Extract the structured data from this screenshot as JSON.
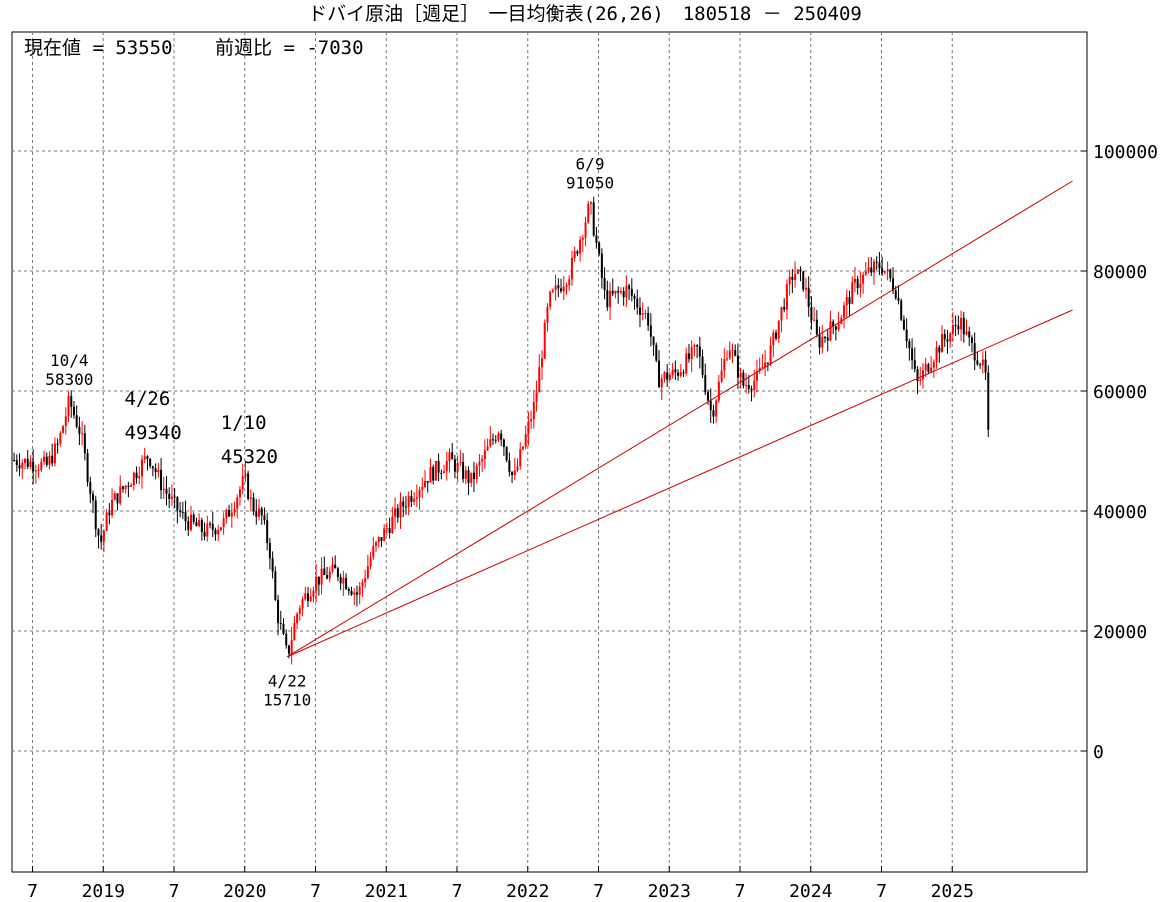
{
  "title": "ドバイ原油［週足］　一目均衡表(26,26)　180518 － 250409",
  "info": {
    "current_label": "現在値 = 53550",
    "change_label": "前週比 = -7030"
  },
  "colors": {
    "up": "#ff0000",
    "down": "#000000",
    "trendline": "#cc0000",
    "grid": "#777777",
    "frame": "#000000"
  },
  "chart_data": {
    "type": "candlestick",
    "title": "ドバイ原油［週足］　一目均衡表(26,26)　180518 － 250409",
    "period": "weekly",
    "ylim": [
      -20000,
      120000
    ],
    "y_ticks": [
      0,
      20000,
      40000,
      60000,
      80000,
      100000
    ],
    "y_tick_labels": [
      "0",
      "20000",
      "40000",
      "60000",
      "80000",
      "100000"
    ],
    "x_range": [
      2018.35,
      2025.85
    ],
    "x_ticks": [
      {
        "t": 2018.5,
        "label": "7"
      },
      {
        "t": 2019.0,
        "label": "2019"
      },
      {
        "t": 2019.5,
        "label": "7"
      },
      {
        "t": 2020.0,
        "label": "2020"
      },
      {
        "t": 2020.5,
        "label": "7"
      },
      {
        "t": 2021.0,
        "label": "2021"
      },
      {
        "t": 2021.5,
        "label": "7"
      },
      {
        "t": 2022.0,
        "label": "2022"
      },
      {
        "t": 2022.5,
        "label": "7"
      },
      {
        "t": 2023.0,
        "label": "2023"
      },
      {
        "t": 2023.5,
        "label": "7"
      },
      {
        "t": 2024.0,
        "label": "2024"
      },
      {
        "t": 2024.5,
        "label": "7"
      },
      {
        "t": 2025.0,
        "label": "2025"
      }
    ],
    "anchors": [
      [
        2018.37,
        48500
      ],
      [
        2018.5,
        48000
      ],
      [
        2018.6,
        47500
      ],
      [
        2018.68,
        51000
      ],
      [
        2018.76,
        58300
      ],
      [
        2018.84,
        53000
      ],
      [
        2018.95,
        38000
      ],
      [
        2018.98,
        34500
      ],
      [
        2019.05,
        41000
      ],
      [
        2019.2,
        45500
      ],
      [
        2019.32,
        49340
      ],
      [
        2019.42,
        44000
      ],
      [
        2019.5,
        41000
      ],
      [
        2019.58,
        38500
      ],
      [
        2019.72,
        36500
      ],
      [
        2019.85,
        38000
      ],
      [
        2020.0,
        45320
      ],
      [
        2020.05,
        41000
      ],
      [
        2020.12,
        39000
      ],
      [
        2020.18,
        33000
      ],
      [
        2020.22,
        24000
      ],
      [
        2020.3,
        15710
      ],
      [
        2020.38,
        24000
      ],
      [
        2020.5,
        28500
      ],
      [
        2020.65,
        30000
      ],
      [
        2020.8,
        26000
      ],
      [
        2020.9,
        33000
      ],
      [
        2021.0,
        37000
      ],
      [
        2021.15,
        42000
      ],
      [
        2021.3,
        46000
      ],
      [
        2021.45,
        48500
      ],
      [
        2021.6,
        45000
      ],
      [
        2021.8,
        54000
      ],
      [
        2021.9,
        45000
      ],
      [
        2022.05,
        58000
      ],
      [
        2022.15,
        75000
      ],
      [
        2022.3,
        80000
      ],
      [
        2022.44,
        91050
      ],
      [
        2022.55,
        75000
      ],
      [
        2022.7,
        77000
      ],
      [
        2022.85,
        72000
      ],
      [
        2022.92,
        62000
      ],
      [
        2023.05,
        63000
      ],
      [
        2023.2,
        67000
      ],
      [
        2023.3,
        56000
      ],
      [
        2023.42,
        68000
      ],
      [
        2023.52,
        61000
      ],
      [
        2023.62,
        62000
      ],
      [
        2023.72,
        67000
      ],
      [
        2023.8,
        74000
      ],
      [
        2023.88,
        80000
      ],
      [
        2023.95,
        78000
      ],
      [
        2024.05,
        68000
      ],
      [
        2024.2,
        72000
      ],
      [
        2024.32,
        78000
      ],
      [
        2024.42,
        80000
      ],
      [
        2024.5,
        81000
      ],
      [
        2024.6,
        77000
      ],
      [
        2024.68,
        69000
      ],
      [
        2024.75,
        61000
      ],
      [
        2024.82,
        64000
      ],
      [
        2024.92,
        68000
      ],
      [
        2025.0,
        70000
      ],
      [
        2025.05,
        72000
      ],
      [
        2025.12,
        68000
      ],
      [
        2025.2,
        65000
      ],
      [
        2025.24,
        62000
      ],
      [
        2025.27,
        53550
      ]
    ],
    "annotations": [
      {
        "date": "10/4",
        "value": "58300",
        "t": 2018.76,
        "y": 58300,
        "pos": "above"
      },
      {
        "date": "4/26",
        "value": "49340",
        "t": 2019.32,
        "y": 49340,
        "pos": "above"
      },
      {
        "date": "1/10",
        "value": "45320",
        "t": 2020.0,
        "y": 45320,
        "pos": "above"
      },
      {
        "date": "6/9",
        "value": "91050",
        "t": 2022.44,
        "y": 91050,
        "pos": "above"
      },
      {
        "date": "4/22",
        "value": "15710",
        "t": 2020.3,
        "y": 15710,
        "pos": "below"
      }
    ],
    "trendlines": [
      {
        "from": {
          "t": 2020.3,
          "y": 15710
        },
        "to": {
          "t": 2025.85,
          "y": 95000
        }
      },
      {
        "from": {
          "t": 2020.3,
          "y": 15710
        },
        "to": {
          "t": 2025.85,
          "y": 73500
        }
      }
    ]
  }
}
